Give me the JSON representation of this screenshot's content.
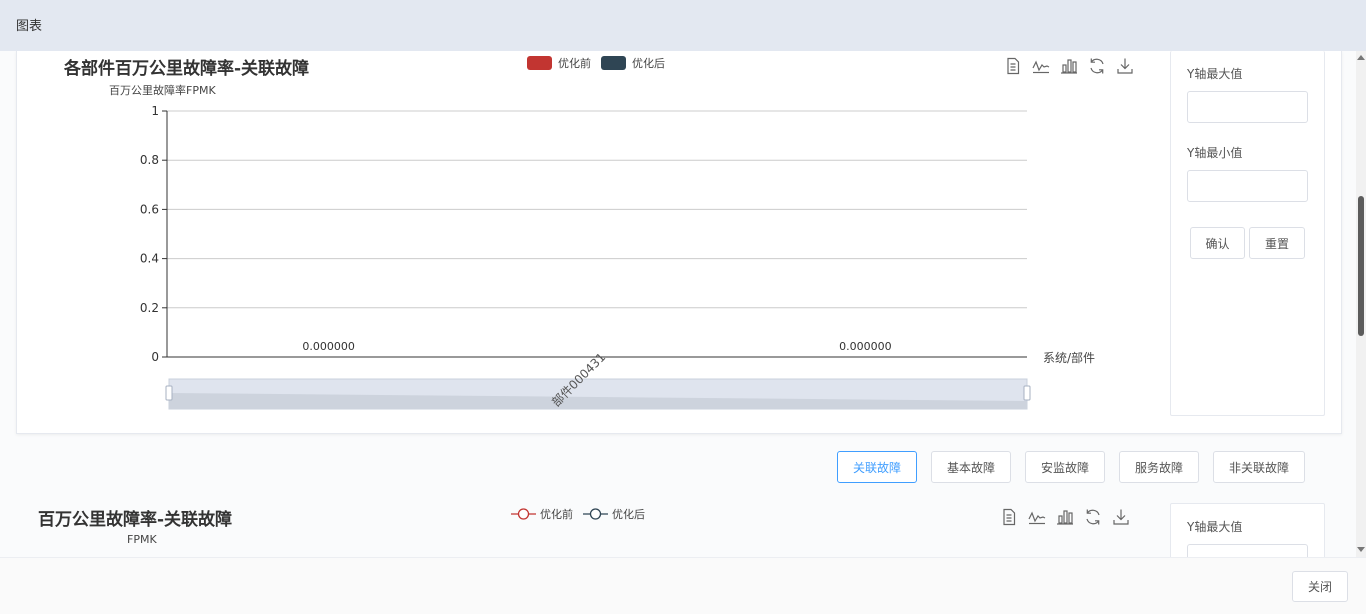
{
  "header": {
    "title": "图表"
  },
  "chart1": {
    "title": "各部件百万公里故障率-关联故障",
    "yaxis_label": "百万公里故障率FPMK",
    "xaxis_label": "系统/部件",
    "legend": [
      {
        "name": "优化前",
        "color": "#c23531"
      },
      {
        "name": "优化后",
        "color": "#2f4554"
      }
    ]
  },
  "chart_data": [
    {
      "type": "bar",
      "title": "各部件百万公里故障率-关联故障",
      "ylabel": "百万公里故障率FPMK",
      "xlabel": "系统/部件",
      "categories": [
        "部件000431"
      ],
      "series": [
        {
          "name": "优化前",
          "values": [
            0
          ],
          "labels": [
            "0.000000"
          ]
        },
        {
          "name": "优化后",
          "values": [
            0
          ],
          "labels": [
            "0.000000"
          ]
        }
      ],
      "yticks": [
        "1",
        "0.8",
        "0.6",
        "0.4",
        "0.2",
        "0"
      ],
      "ylim": [
        0,
        1
      ],
      "grid": true,
      "legend": "top-center",
      "datazoom": true
    },
    {
      "type": "line",
      "title": "百万公里故障率-关联故障",
      "ylabel": "FPMK",
      "series": [
        {
          "name": "优化前"
        },
        {
          "name": "优化后"
        }
      ],
      "legend": "top-center"
    }
  ],
  "panel1": {
    "ymax_label": "Y轴最大值",
    "ymin_label": "Y轴最小值",
    "ymax_value": "",
    "ymin_value": "",
    "confirm_label": "确认",
    "reset_label": "重置"
  },
  "tabs": [
    {
      "label": "关联故障",
      "active": true
    },
    {
      "label": "基本故障",
      "active": false
    },
    {
      "label": "安监故障",
      "active": false
    },
    {
      "label": "服务故障",
      "active": false
    },
    {
      "label": "非关联故障",
      "active": false
    }
  ],
  "chart2": {
    "title": "百万公里故障率-关联故障",
    "yaxis_label": "FPMK",
    "legend": [
      {
        "name": "优化前",
        "color": "#c23531"
      },
      {
        "name": "优化后",
        "color": "#2f4554"
      }
    ]
  },
  "panel2": {
    "ymax_label": "Y轴最大值"
  },
  "footer": {
    "close_label": "关闭"
  },
  "toolbox_icons": [
    "data-view-icon",
    "line-chart-icon",
    "bar-chart-icon",
    "restore-icon",
    "download-icon"
  ]
}
